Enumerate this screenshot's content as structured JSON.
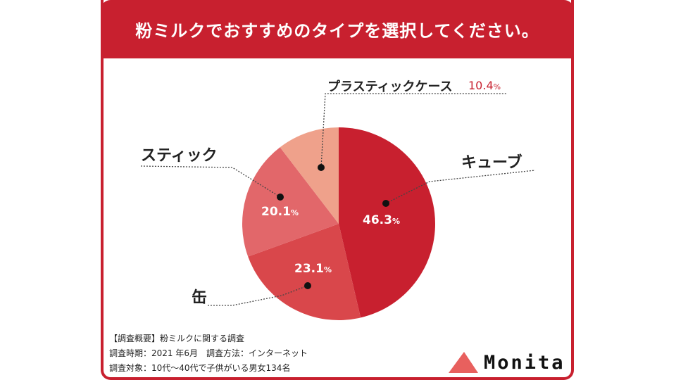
{
  "chart_data": {
    "type": "pie",
    "title": "粉ミルクでおすすめのタイプを選択してください。",
    "slices": [
      {
        "label": "キューブ",
        "value": 46.3,
        "color": "#c8202f"
      },
      {
        "label": "缶",
        "value": 23.1,
        "color": "#d9474b"
      },
      {
        "label": "スティック",
        "value": 20.1,
        "color": "#e2676a"
      },
      {
        "label": "プラスティックケース",
        "value": 10.4,
        "color": "#efa18b"
      }
    ],
    "value_labels": [
      "46.3",
      "23.1",
      "20.1",
      "10.4"
    ],
    "unit": "%"
  },
  "survey": {
    "line1": "【調査概要】粉ミルクに関する調査",
    "line2": "調査時期：2021 年6月　調査方法：インターネット",
    "line3": "調査対象：10代〜40代で子供がいる男女134名"
  },
  "brand": {
    "name": "Monita",
    "accent": "#e8605e"
  }
}
